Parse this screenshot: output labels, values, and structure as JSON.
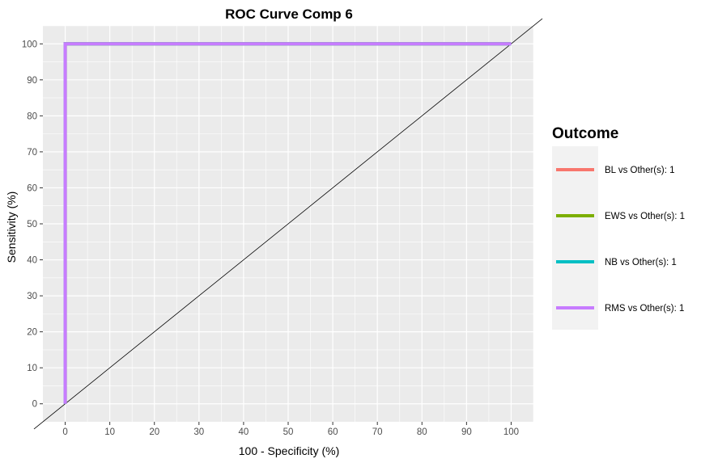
{
  "chart_data": {
    "type": "line",
    "title": "ROC Curve Comp 6",
    "xlabel": "100 - Specificity (%)",
    "ylabel": "Sensitivity (%)",
    "xlim": [
      -5,
      105
    ],
    "ylim": [
      -5,
      105
    ],
    "xticks": [
      0,
      10,
      20,
      30,
      40,
      50,
      60,
      70,
      80,
      90,
      100
    ],
    "yticks": [
      0,
      10,
      20,
      30,
      40,
      50,
      60,
      70,
      80,
      90,
      100
    ],
    "grid": true,
    "reference_line": {
      "x": [
        -5,
        105
      ],
      "y": [
        -5,
        105
      ],
      "color": "#000000"
    },
    "legend": {
      "title": "Outcome",
      "position": "right"
    },
    "series": [
      {
        "name": "BL vs Other(s): 1",
        "color": "#F8766D",
        "x": [
          0,
          0,
          100
        ],
        "y": [
          0,
          100,
          100
        ]
      },
      {
        "name": "EWS vs Other(s): 1",
        "color": "#7CAE00",
        "x": [
          0,
          0,
          100
        ],
        "y": [
          0,
          100,
          100
        ]
      },
      {
        "name": "NB vs Other(s): 1",
        "color": "#00BFC4",
        "x": [
          0,
          0,
          100
        ],
        "y": [
          0,
          100,
          100
        ]
      },
      {
        "name": "RMS vs Other(s): 1",
        "color": "#C77CFF",
        "x": [
          0,
          0,
          100
        ],
        "y": [
          0,
          100,
          100
        ]
      }
    ]
  },
  "colors": {
    "panel_background": "#EBEBEB",
    "grid_major": "#FFFFFF",
    "legend_key_background": "#F2F2F2"
  }
}
